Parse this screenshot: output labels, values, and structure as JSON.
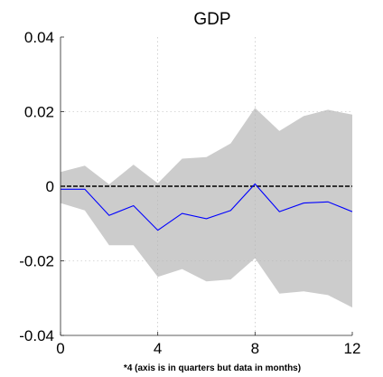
{
  "chart_data": {
    "type": "line",
    "title": "GDP",
    "xlabel": "*4 (axis is in quarters but data in months)",
    "ylabel": "",
    "xlim": [
      0,
      12
    ],
    "ylim": [
      -0.04,
      0.04
    ],
    "x_ticks": [
      0,
      4,
      8,
      12
    ],
    "y_ticks": [
      0.04,
      0.02,
      0,
      -0.02,
      -0.04
    ],
    "x_tick_labels": [
      "0",
      "4",
      "8",
      "12"
    ],
    "y_tick_labels": [
      "0.04",
      "0.02",
      "0",
      "-0.02",
      "-0.04"
    ],
    "grid": true,
    "x": [
      0,
      1,
      2,
      3,
      4,
      5,
      6,
      7,
      8,
      9,
      10,
      11,
      12
    ],
    "series": [
      {
        "role": "response",
        "color": "#0000ff",
        "values": [
          -0.0008,
          -0.0008,
          -0.0078,
          -0.0052,
          -0.0118,
          -0.0073,
          -0.0087,
          -0.0065,
          0.0006,
          -0.0068,
          -0.0045,
          -0.0042,
          -0.0068
        ]
      },
      {
        "role": "upper-band",
        "color": "#cccccc",
        "values": [
          0.0038,
          0.0055,
          0.0005,
          0.0058,
          0.0008,
          0.0074,
          0.0078,
          0.0115,
          0.021,
          0.0148,
          0.0188,
          0.0205,
          0.0192
        ]
      },
      {
        "role": "lower-band",
        "color": "#cccccc",
        "values": [
          -0.0045,
          -0.0065,
          -0.0158,
          -0.0158,
          -0.0243,
          -0.0222,
          -0.0255,
          -0.025,
          -0.0193,
          -0.0288,
          -0.0282,
          -0.0292,
          -0.0325
        ]
      },
      {
        "role": "zero-line",
        "color": "#000000",
        "values": [
          0,
          0,
          0,
          0,
          0,
          0,
          0,
          0,
          0,
          0,
          0,
          0,
          0
        ]
      }
    ]
  }
}
